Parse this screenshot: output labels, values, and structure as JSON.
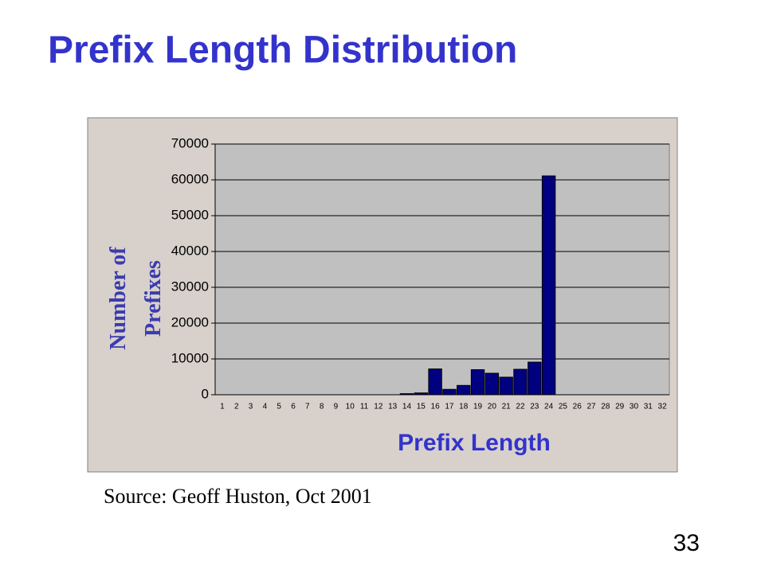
{
  "chart_data": {
    "type": "bar",
    "title": "Prefix Length Distribution",
    "x_label": "Prefix Length",
    "y_label": "Number of Prefixes",
    "source": "Source: Geoff Huston, Oct 2001",
    "page_number": "33",
    "categories": [
      "1",
      "2",
      "3",
      "4",
      "5",
      "6",
      "7",
      "8",
      "9",
      "10",
      "11",
      "12",
      "13",
      "14",
      "15",
      "16",
      "17",
      "18",
      "19",
      "20",
      "21",
      "22",
      "23",
      "24",
      "25",
      "26",
      "27",
      "28",
      "29",
      "30",
      "31",
      "32"
    ],
    "values": [
      0,
      0,
      0,
      0,
      0,
      0,
      0,
      0,
      0,
      0,
      0,
      0,
      0,
      300,
      500,
      7200,
      1500,
      2600,
      7000,
      6000,
      4900,
      7100,
      9100,
      61100,
      0,
      0,
      0,
      0,
      0,
      0,
      0,
      0
    ],
    "color": "#000080",
    "ylim": [
      0,
      70000
    ],
    "yticks": [
      0,
      10000,
      20000,
      30000,
      40000,
      50000,
      60000,
      70000
    ],
    "grid": true
  }
}
